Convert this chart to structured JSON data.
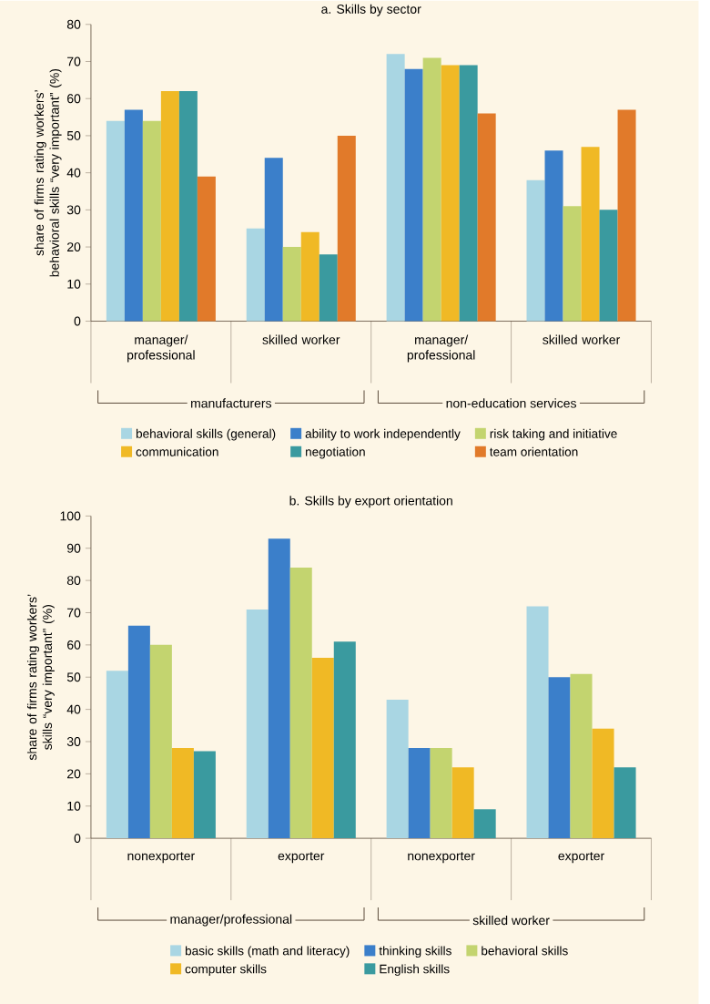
{
  "chart_data": [
    {
      "type": "bar",
      "title": "a. Skills by sector",
      "ylabel": "share of firms rating workers’ behavioral skills “very important” (%)",
      "categories": [
        "manager/ professional",
        "skilled worker",
        "manager/ professional",
        "skilled worker"
      ],
      "series": [
        {
          "name": "behavioral skills (general)",
          "color": "#a9d6e3",
          "values": [
            54,
            25,
            72,
            38
          ]
        },
        {
          "name": "ability to work independently",
          "color": "#3b7fca",
          "values": [
            57,
            44,
            68,
            46
          ]
        },
        {
          "name": "risk taking and initiative",
          "color": "#c3d46f",
          "values": [
            54,
            20,
            71,
            31
          ]
        },
        {
          "name": "communication",
          "color": "#f0b925",
          "values": [
            62,
            24,
            69,
            47
          ]
        },
        {
          "name": "negotiation",
          "color": "#3a9a9f",
          "values": [
            62,
            18,
            69,
            30
          ]
        },
        {
          "name": "team orientation",
          "color": "#e17a2a",
          "values": [
            39,
            50,
            56,
            57
          ]
        }
      ],
      "ylim": [
        0,
        80
      ],
      "yticks": [
        0,
        10,
        20,
        30,
        40,
        50,
        60,
        70,
        80
      ],
      "legend": "bottom",
      "annotations": [
        "manufacturers",
        "non-education services"
      ]
    },
    {
      "type": "bar",
      "title": "b. Skills by export orientation",
      "ylabel": "share of firms rating workers’ skills “very important” (%)",
      "categories": [
        "nonexporter",
        "exporter",
        "nonexporter",
        "exporter"
      ],
      "series": [
        {
          "name": "basic skills (math and literacy)",
          "color": "#a9d6e3",
          "values": [
            52,
            71,
            43,
            72
          ]
        },
        {
          "name": "thinking skills",
          "color": "#3b7fca",
          "values": [
            66,
            93,
            28,
            50
          ]
        },
        {
          "name": "behavioral skills",
          "color": "#c3d46f",
          "values": [
            60,
            84,
            28,
            51
          ]
        },
        {
          "name": "computer skills",
          "color": "#f0b925",
          "values": [
            28,
            56,
            22,
            34
          ]
        },
        {
          "name": "English skills",
          "color": "#3a9a9f",
          "values": [
            27,
            61,
            9,
            22
          ]
        }
      ],
      "ylim": [
        0,
        100
      ],
      "yticks": [
        0,
        10,
        20,
        30,
        40,
        50,
        60,
        70,
        80,
        90,
        100
      ],
      "legend": "bottom",
      "annotations": [
        "manager/professional",
        "skilled worker"
      ]
    }
  ]
}
